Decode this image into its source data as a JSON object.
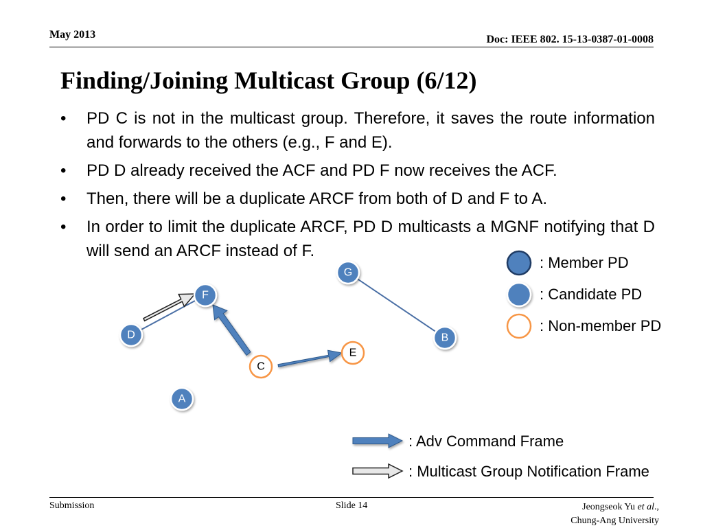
{
  "header": {
    "date": "May 2013",
    "doc": "Doc: IEEE 802. 15-13-0387-01-0008"
  },
  "title": "Finding/Joining Multicast Group (6/12)",
  "bullets": [
    {
      "marker": "•",
      "text": "PD C is not in the multicast group. Therefore, it saves the route information and forwards to the others (e.g., F and E)."
    },
    {
      "marker": "•",
      "text": "PD D already received the ACF and PD F now receives the ACF."
    },
    {
      "marker": "•",
      "text": "Then, there will be a duplicate ARCF from both of D and F to A."
    },
    {
      "marker": "•",
      "text": "In order to limit the duplicate ARCF, PD D multicasts a MGNF notifying that D will send an ARCF instead of F."
    }
  ],
  "nodes": {
    "G": "G",
    "F": "F",
    "D": "D",
    "B": "B",
    "E": "E",
    "C": "C",
    "A": "A"
  },
  "legend": {
    "member": ": Member PD",
    "candidate": ": Candidate PD",
    "non_member": ": Non-member PD",
    "adv": ": Adv Command Frame",
    "mgnf": ": Multicast Group Notification Frame"
  },
  "colors": {
    "member_fill": "#4f81bd",
    "member_stroke": "#1f3b64",
    "candidate_fill": "#4f81bd",
    "non_member_stroke": "#f79646",
    "link": "#4a6fa5"
  },
  "footer": {
    "left": "Submission",
    "slide": "Slide 14",
    "author": "Jeongseok Yu",
    "etal": "et al",
    "author_tail": ".,",
    "org": "Chung-Ang University"
  }
}
